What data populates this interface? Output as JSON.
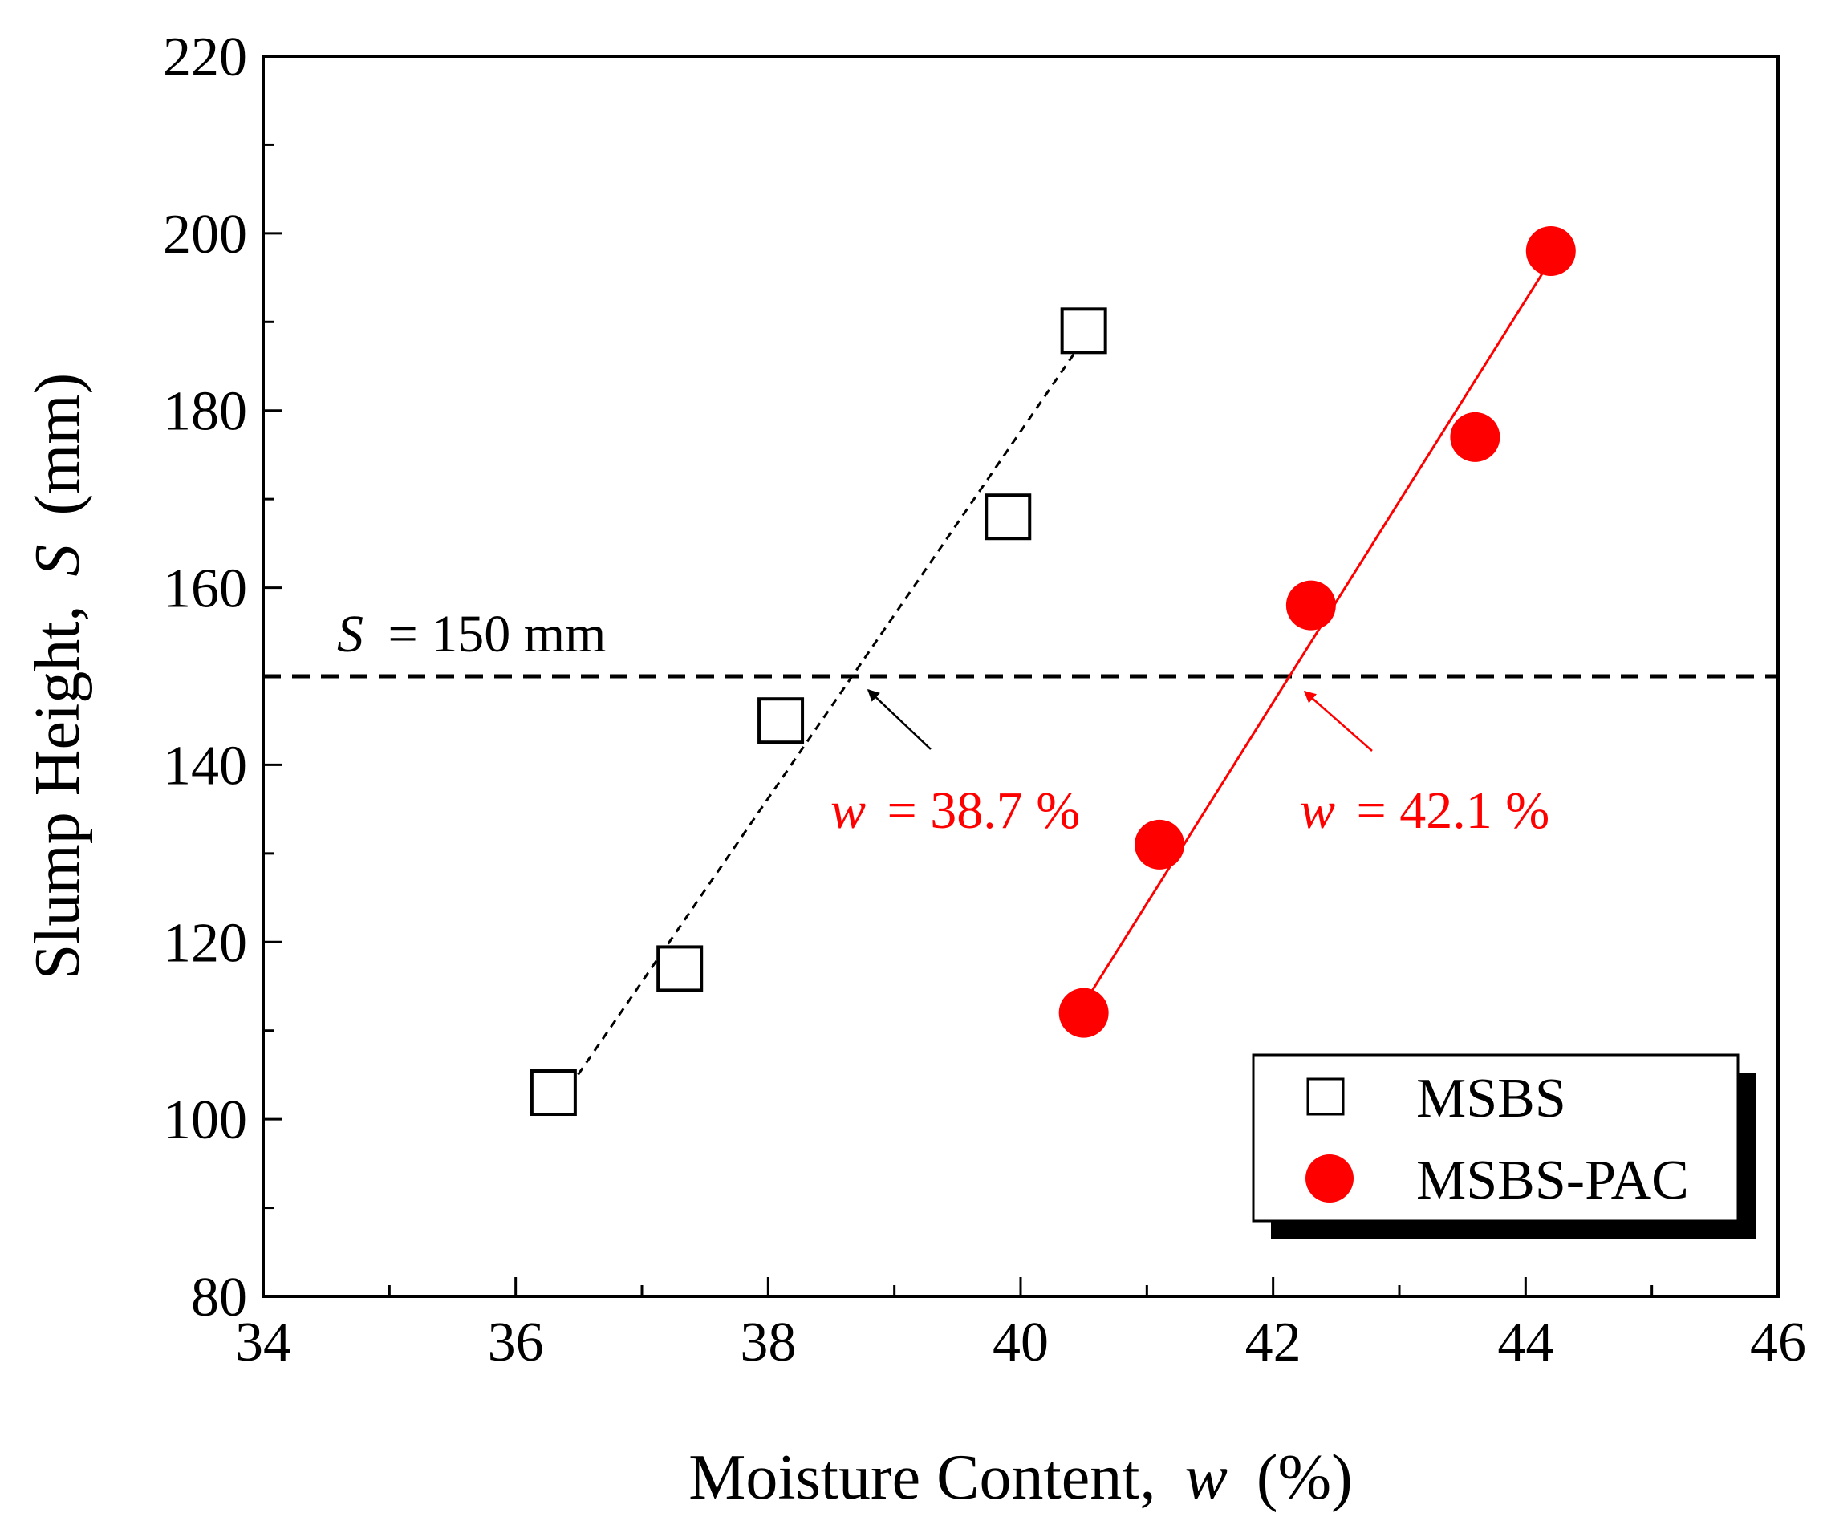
{
  "chart_data": {
    "type": "scatter",
    "xlabel": "Moisture Content,",
    "xlabel_var": "w",
    "xlabel_unit": "(%)",
    "ylabel": "Slump Height,",
    "ylabel_var": "S",
    "ylabel_unit": "(mm)",
    "xlim": [
      34,
      46
    ],
    "ylim": [
      80,
      220
    ],
    "xticks": [
      34,
      36,
      38,
      40,
      42,
      44,
      46
    ],
    "yticks": [
      80,
      100,
      120,
      140,
      160,
      180,
      200,
      220
    ],
    "series": [
      {
        "name": "MSBS",
        "marker": "open-square",
        "color": "#000000",
        "x": [
          36.3,
          37.3,
          38.1,
          39.9,
          40.5
        ],
        "y": [
          103,
          117,
          145,
          168,
          189
        ],
        "fit": {
          "x": [
            36.3,
            40.5
          ],
          "y": [
            101,
            188
          ],
          "style": "dashed"
        }
      },
      {
        "name": "MSBS-PAC",
        "marker": "filled-circle",
        "color": "#ff0000",
        "x": [
          40.5,
          41.1,
          42.3,
          43.6,
          44.2
        ],
        "y": [
          112,
          131,
          158,
          177,
          198
        ],
        "fit": {
          "x": [
            40.5,
            44.2
          ],
          "y": [
            113,
            197
          ],
          "style": "solid"
        }
      }
    ],
    "reference_line": {
      "y": 150,
      "label_var": "S",
      "label_text": "= 150 mm",
      "style": "dashed"
    },
    "annotations": [
      {
        "var": "w",
        "text": "= 38.7 %",
        "x": 38.7,
        "y": 150,
        "color": "#ff0000",
        "arrow_color": "#000000"
      },
      {
        "var": "w",
        "text": "= 42.1 %",
        "x": 42.1,
        "y": 150,
        "color": "#ff0000",
        "arrow_color": "#ff0000"
      }
    ],
    "legend": {
      "position": "bottom-right",
      "entries": [
        "MSBS",
        "MSBS-PAC"
      ]
    }
  }
}
